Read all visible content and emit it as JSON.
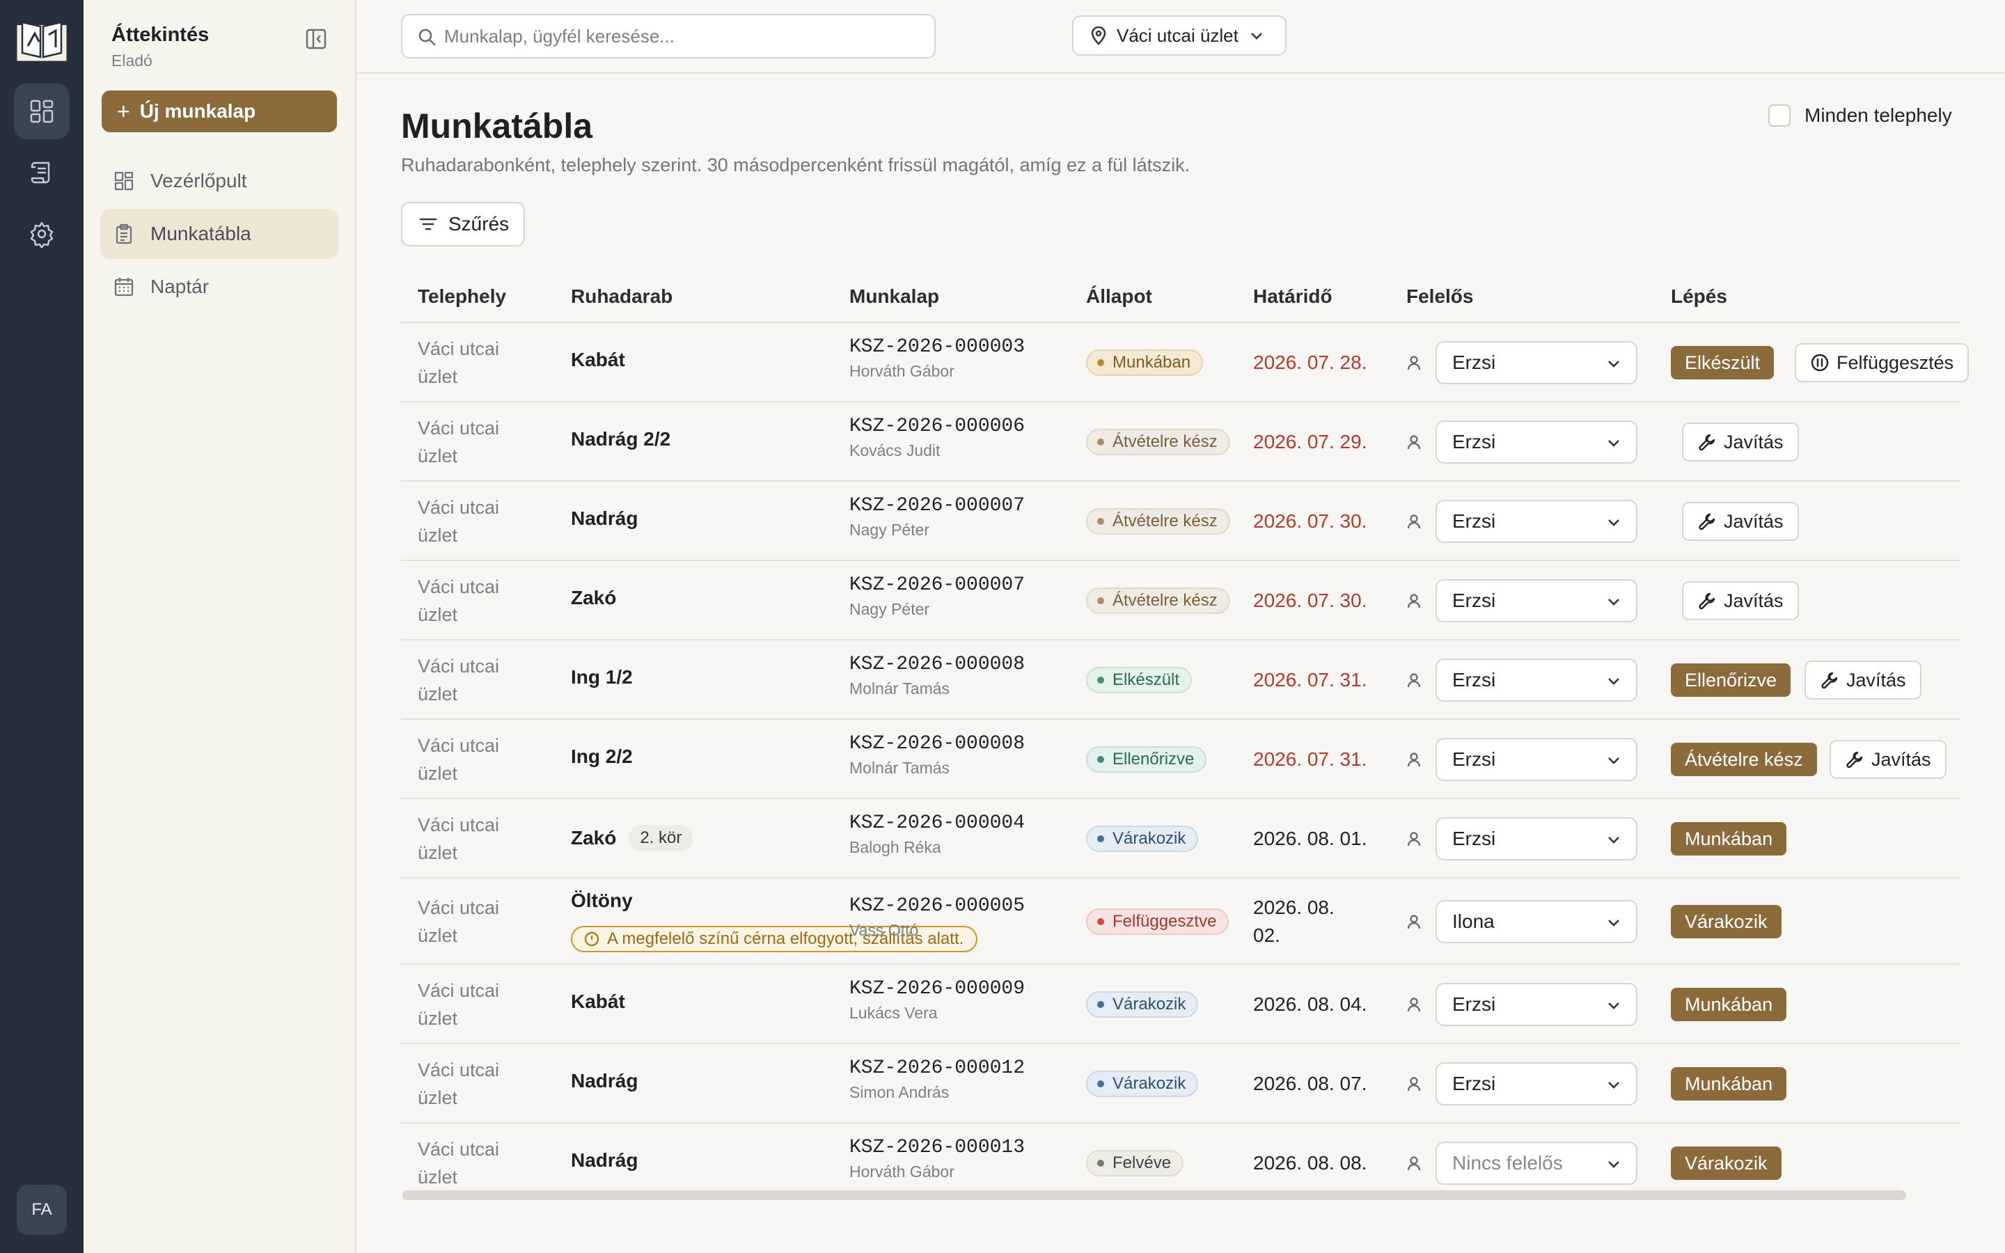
{
  "sidebar": {
    "title": "Áttekintés",
    "subtitle": "Eladó",
    "new_button": "Új munkalap",
    "items": [
      {
        "label": "Vezérlőpult",
        "icon": "dashboard-icon"
      },
      {
        "label": "Munkatábla",
        "icon": "clipboard-icon"
      },
      {
        "label": "Naptár",
        "icon": "calendar-icon"
      }
    ]
  },
  "rail": {
    "avatar": "FA"
  },
  "topbar": {
    "search_placeholder": "Munkalap, ügyfél keresése...",
    "location": "Váci utcai üzlet"
  },
  "main": {
    "title": "Munkatábla",
    "description": "Ruhadarabonként, telephely szerint. 30 másodpercenként frissül magától, amíg ez a fül látszik.",
    "all_sites_label": "Minden telephely",
    "filter_label": "Szűrés"
  },
  "table": {
    "headers": [
      "Telephely",
      "Ruhadarab",
      "Munkalap",
      "Állapot",
      "Határidő",
      "Felelős",
      "Lépés"
    ],
    "rows": [
      {
        "site": "Váci utcai üzlet",
        "garment": "Kabát",
        "code": "KSZ-2026-000003",
        "customer": "Horváth Gábor",
        "status": "Munkában",
        "status_key": "munkaban",
        "deadline": "2026. 07. 28.",
        "late": true,
        "owner": "Erzsi",
        "step": "Elkészült",
        "secondary": "Felfüggesztés",
        "secondary_icon": "pause-icon"
      },
      {
        "site": "Váci utcai üzlet",
        "garment": "Nadrág 2/2",
        "code": "KSZ-2026-000006",
        "customer": "Kovács Judit",
        "status": "Átvételre kész",
        "status_key": "atvetel",
        "deadline": "2026. 07. 29.",
        "late": true,
        "owner": "Erzsi",
        "step": "",
        "secondary": "Javítás",
        "secondary_icon": "wrench-icon"
      },
      {
        "site": "Váci utcai üzlet",
        "garment": "Nadrág",
        "code": "KSZ-2026-000007",
        "customer": "Nagy Péter",
        "status": "Átvételre kész",
        "status_key": "atvetel",
        "deadline": "2026. 07. 30.",
        "late": true,
        "owner": "Erzsi",
        "step": "",
        "secondary": "Javítás",
        "secondary_icon": "wrench-icon"
      },
      {
        "site": "Váci utcai üzlet",
        "garment": "Zakó",
        "code": "KSZ-2026-000007",
        "customer": "Nagy Péter",
        "status": "Átvételre kész",
        "status_key": "atvetel",
        "deadline": "2026. 07. 30.",
        "late": true,
        "owner": "Erzsi",
        "step": "",
        "secondary": "Javítás",
        "secondary_icon": "wrench-icon"
      },
      {
        "site": "Váci utcai üzlet",
        "garment": "Ing 1/2",
        "code": "KSZ-2026-000008",
        "customer": "Molnár Tamás",
        "status": "Elkészült",
        "status_key": "elkeszult",
        "deadline": "2026. 07. 31.",
        "late": true,
        "owner": "Erzsi",
        "step": "Ellenőrizve",
        "secondary": "Javítás",
        "secondary_icon": "wrench-icon"
      },
      {
        "site": "Váci utcai üzlet",
        "garment": "Ing 2/2",
        "code": "KSZ-2026-000008",
        "customer": "Molnár Tamás",
        "status": "Ellenőrizve",
        "status_key": "ellenorizve",
        "deadline": "2026. 07. 31.",
        "late": true,
        "owner": "Erzsi",
        "step": "Átvételre kész",
        "secondary": "Javítás",
        "secondary_icon": "wrench-icon"
      },
      {
        "site": "Váci utcai üzlet",
        "garment": "Zakó",
        "tag": "2. kör",
        "code": "KSZ-2026-000004",
        "customer": "Balogh Réka",
        "status": "Várakozik",
        "status_key": "varakozik",
        "deadline": "2026. 08. 01.",
        "late": false,
        "owner": "Erzsi",
        "step": "Munkában",
        "secondary": ""
      },
      {
        "site": "Váci utcai üzlet",
        "garment": "Öltöny",
        "note": "A megfelelő színű cérna elfogyott, szállítás alatt.",
        "code": "KSZ-2026-000005",
        "customer": "Vass Ottó",
        "status": "Felfüggesztve",
        "status_key": "felfugg",
        "deadline": "2026. 08. 02.",
        "late": false,
        "owner": "Ilona",
        "step": "Várakozik",
        "secondary": ""
      },
      {
        "site": "Váci utcai üzlet",
        "garment": "Kabát",
        "code": "KSZ-2026-000009",
        "customer": "Lukács Vera",
        "status": "Várakozik",
        "status_key": "varakozik",
        "deadline": "2026. 08. 04.",
        "late": false,
        "owner": "Erzsi",
        "step": "Munkában",
        "secondary": ""
      },
      {
        "site": "Váci utcai üzlet",
        "garment": "Nadrág",
        "code": "KSZ-2026-000012",
        "customer": "Simon András",
        "status": "Várakozik",
        "status_key": "varakozik",
        "deadline": "2026. 08. 07.",
        "late": false,
        "owner": "Erzsi",
        "step": "Munkában",
        "secondary": ""
      },
      {
        "site": "Váci utcai üzlet",
        "garment": "Nadrág",
        "code": "KSZ-2026-000013",
        "customer": "Horváth Gábor",
        "status": "Felvéve",
        "status_key": "felveve",
        "deadline": "2026. 08. 08.",
        "late": false,
        "owner": "Nincs felelős",
        "owner_empty": true,
        "step": "Várakozik",
        "secondary": ""
      }
    ]
  },
  "colors": {
    "accent": "#8b6b3b",
    "late": "#b33a2e",
    "rail": "#26303c"
  }
}
